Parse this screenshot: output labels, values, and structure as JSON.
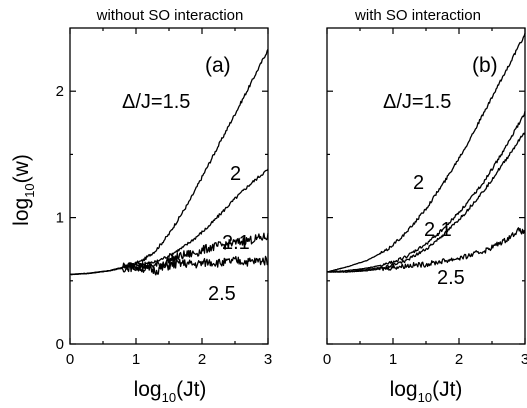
{
  "chart_data": [
    {
      "type": "line",
      "title": "without SO interaction",
      "panel_label": "(a)",
      "xlabel": "log10(Jt)",
      "ylabel": "log10(w)",
      "xlim": [
        0,
        3
      ],
      "ylim": [
        0,
        2.5
      ],
      "x_ticks": [
        0,
        1,
        2,
        3
      ],
      "y_ticks": [
        0,
        1,
        2
      ],
      "grid": false,
      "annotations": [
        "Δ/J=1.5",
        "2",
        "2.1",
        "2.5"
      ],
      "series": [
        {
          "label": "Δ/J=1.5",
          "x": [
            0,
            0.3,
            0.6,
            0.9,
            1.1,
            1.3,
            1.5,
            1.8,
            2.1,
            2.4,
            2.7,
            3.0
          ],
          "y": [
            0.55,
            0.56,
            0.58,
            0.62,
            0.66,
            0.74,
            0.87,
            1.12,
            1.42,
            1.72,
            2.02,
            2.33
          ]
        },
        {
          "label": "2",
          "x": [
            0,
            0.3,
            0.6,
            0.9,
            1.1,
            1.3,
            1.5,
            1.7,
            1.9,
            2.1,
            2.3,
            2.5,
            2.7,
            2.9,
            3.0
          ],
          "y": [
            0.55,
            0.56,
            0.58,
            0.62,
            0.63,
            0.65,
            0.7,
            0.76,
            0.84,
            0.93,
            1.04,
            1.15,
            1.25,
            1.34,
            1.38
          ]
        },
        {
          "label": "2.1",
          "x": [
            0,
            0.3,
            0.6,
            0.9,
            1.1,
            1.3,
            1.5,
            1.7,
            1.9,
            2.1,
            2.3,
            2.5,
            2.7,
            2.9,
            3.0
          ],
          "y": [
            0.55,
            0.56,
            0.58,
            0.62,
            0.62,
            0.62,
            0.66,
            0.7,
            0.72,
            0.76,
            0.78,
            0.8,
            0.82,
            0.84,
            0.85
          ]
        },
        {
          "label": "2.5",
          "x": [
            0,
            0.3,
            0.6,
            0.9,
            1.1,
            1.3,
            1.5,
            1.7,
            1.9,
            2.1,
            2.3,
            2.5,
            2.7,
            2.9,
            3.0
          ],
          "y": [
            0.55,
            0.56,
            0.58,
            0.61,
            0.6,
            0.58,
            0.62,
            0.64,
            0.63,
            0.65,
            0.64,
            0.66,
            0.65,
            0.66,
            0.66
          ]
        }
      ]
    },
    {
      "type": "line",
      "title": "with SO interaction",
      "panel_label": "(b)",
      "xlabel": "log10(Jt)",
      "xlim": [
        0,
        3
      ],
      "ylim": [
        0,
        2.5
      ],
      "x_ticks": [
        0,
        1,
        2,
        3
      ],
      "y_ticks": [
        0,
        1,
        2
      ],
      "grid": false,
      "annotations": [
        "Δ/J=1.5",
        "2",
        "2.1",
        "2.5"
      ],
      "series": [
        {
          "label": "Δ/J=1.5",
          "x": [
            0,
            0.3,
            0.6,
            0.9,
            1.2,
            1.5,
            1.8,
            2.1,
            2.4,
            2.7,
            3.0
          ],
          "y": [
            0.57,
            0.61,
            0.66,
            0.74,
            0.88,
            1.07,
            1.3,
            1.56,
            1.85,
            2.15,
            2.45
          ]
        },
        {
          "label": "2",
          "x": [
            0,
            0.3,
            0.6,
            0.9,
            1.2,
            1.5,
            1.8,
            2.1,
            2.4,
            2.7,
            3.0
          ],
          "y": [
            0.57,
            0.58,
            0.6,
            0.63,
            0.69,
            0.79,
            0.93,
            1.1,
            1.3,
            1.55,
            1.83
          ]
        },
        {
          "label": "2.1",
          "x": [
            0,
            0.3,
            0.6,
            0.9,
            1.2,
            1.5,
            1.8,
            2.1,
            2.4,
            2.7,
            3.0
          ],
          "y": [
            0.57,
            0.57,
            0.59,
            0.61,
            0.66,
            0.75,
            0.88,
            1.04,
            1.23,
            1.45,
            1.68
          ]
        },
        {
          "label": "2.5",
          "x": [
            0,
            0.3,
            0.6,
            0.9,
            1.2,
            1.5,
            1.8,
            2.1,
            2.4,
            2.7,
            2.9,
            3.0
          ],
          "y": [
            0.57,
            0.57,
            0.58,
            0.6,
            0.62,
            0.63,
            0.66,
            0.69,
            0.74,
            0.82,
            0.9,
            0.88
          ]
        }
      ]
    }
  ]
}
